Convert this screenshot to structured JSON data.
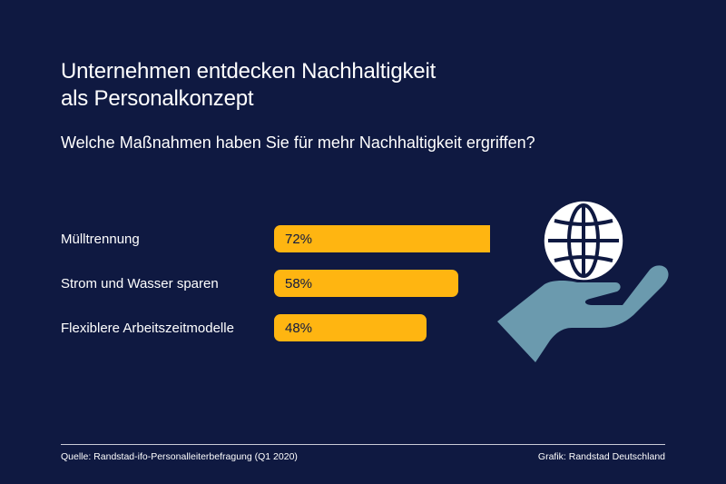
{
  "title_line1": "Unternehmen entdecken Nachhaltigkeit",
  "title_line2": "als Personalkonzept",
  "chart_data": {
    "type": "bar",
    "orientation": "horizontal",
    "title": "Unternehmen entdecken Nachhaltigkeit als Personalkonzept",
    "subtitle": "Welche Maßnahmen haben Sie für mehr Nachhaltigkeit ergriffen?",
    "categories": [
      "Mülltrennung",
      "Strom und Wasser sparen",
      "Flexiblere Arbeitszeitmodelle"
    ],
    "values": [
      72,
      58,
      48
    ],
    "value_labels": [
      "72%",
      "58%",
      "48%"
    ],
    "unit": "%",
    "xlim": [
      0,
      100
    ],
    "grid": false,
    "bar_color": "#ffb511"
  },
  "footer": {
    "source": "Quelle: Randstad-ifo-Personalleiterbefragung (Q1 2020)",
    "credit": "Grafik: Randstad Deutschland"
  },
  "colors": {
    "background": "#0f1941",
    "bar": "#ffb511",
    "bar_text": "#0f1941",
    "hand": "#6b9aae",
    "globe": "#ffffff"
  },
  "illustration": {
    "icons": [
      "globe-icon",
      "hand-icon"
    ]
  }
}
